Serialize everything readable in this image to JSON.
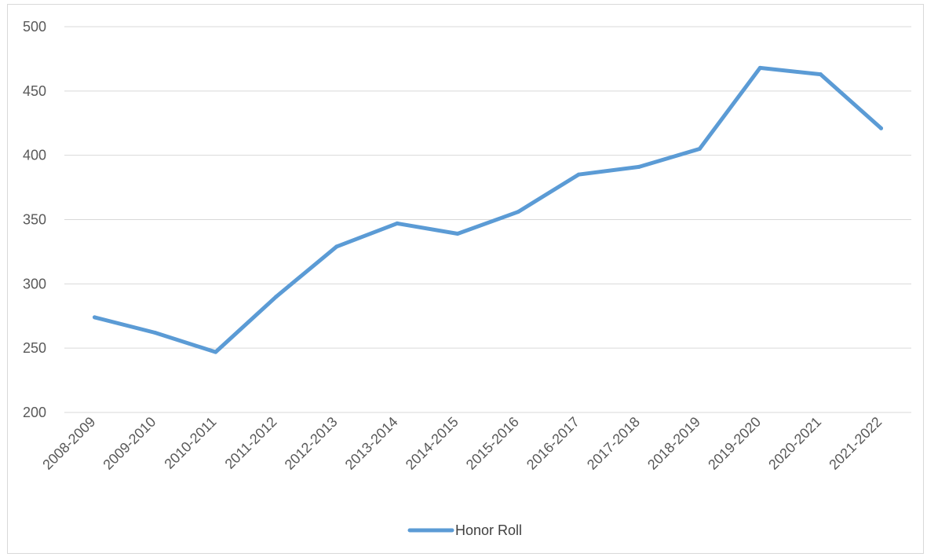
{
  "chart_data": {
    "type": "line",
    "categories": [
      "2008-2009",
      "2009-2010",
      "2010-2011",
      "2011-2012",
      "2012-2013",
      "2013-2014",
      "2014-2015",
      "2015-2016",
      "2016-2017",
      "2017-2018",
      "2018-2019",
      "2019-2020",
      "2020-2021",
      "2021-2022"
    ],
    "series": [
      {
        "name": "Honor Roll",
        "color": "#5B9BD5",
        "values": [
          274,
          262,
          247,
          290,
          329,
          347,
          339,
          356,
          385,
          391,
          405,
          468,
          463,
          421
        ]
      }
    ],
    "title": "",
    "xlabel": "",
    "ylabel": "",
    "ylim": [
      200,
      500
    ],
    "yticks": [
      200,
      250,
      300,
      350,
      400,
      450,
      500
    ],
    "grid": true,
    "legend_position": "bottom"
  }
}
